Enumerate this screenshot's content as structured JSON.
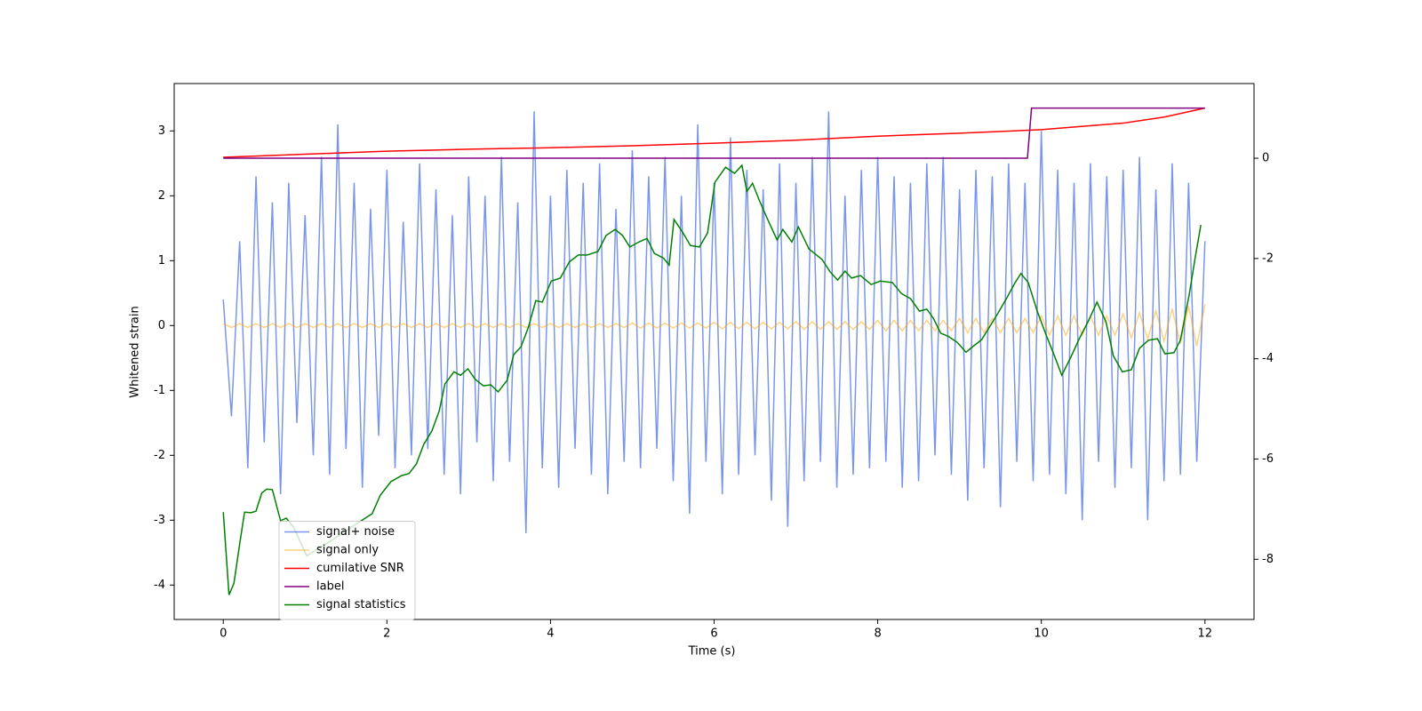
{
  "chart_data": {
    "type": "line",
    "xlabel": "Time (s)",
    "ylabel": "Whitened strain",
    "xlim": [
      -0.6,
      12.6
    ],
    "xticks": [
      0,
      2,
      4,
      6,
      8,
      10,
      12
    ],
    "ylim": [
      -4.53,
      3.73
    ],
    "yticks": [
      -4,
      -3,
      -2,
      -1,
      0,
      1,
      2,
      3
    ],
    "y2lim": [
      -9.2,
      1.49
    ],
    "y2ticks": [
      -8,
      -6,
      -4,
      -2,
      0
    ],
    "legend": "lower left",
    "x": [
      0,
      0.1,
      0.2,
      0.3,
      0.4,
      0.5,
      0.6,
      0.7,
      0.8,
      0.9,
      1,
      1.1,
      1.2,
      1.3,
      1.4,
      1.5,
      1.6,
      1.7,
      1.8,
      1.9,
      2,
      2.1,
      2.2,
      2.3,
      2.4,
      2.5,
      2.6,
      2.7,
      2.8,
      2.9,
      3,
      3.1,
      3.2,
      3.3,
      3.4,
      3.5,
      3.6,
      3.7,
      3.8,
      3.9,
      4,
      4.1,
      4.2,
      4.3,
      4.4,
      4.5,
      4.6,
      4.7,
      4.8,
      4.9,
      5,
      5.1,
      5.2,
      5.3,
      5.4,
      5.5,
      5.6,
      5.7,
      5.8,
      5.9,
      6,
      6.1,
      6.2,
      6.3,
      6.4,
      6.5,
      6.6,
      6.7,
      6.8,
      6.9,
      7,
      7.1,
      7.2,
      7.3,
      7.4,
      7.5,
      7.6,
      7.7,
      7.8,
      7.9,
      8,
      8.1,
      8.2,
      8.3,
      8.4,
      8.5,
      8.6,
      8.7,
      8.8,
      8.9,
      9,
      9.1,
      9.2,
      9.3,
      9.4,
      9.5,
      9.6,
      9.7,
      9.8,
      9.9,
      10,
      10.1,
      10.2,
      10.3,
      10.4,
      10.5,
      10.6,
      10.7,
      10.8,
      10.9,
      11,
      11.1,
      11.2,
      11.3,
      11.4,
      11.5,
      11.6,
      11.7,
      11.8,
      11.9,
      12
    ],
    "series": [
      {
        "name": "signal+ noise",
        "color": "#4169e1",
        "values": [
          0.4,
          -1.4,
          1.3,
          -2.2,
          2.3,
          -1.8,
          1.9,
          -2.6,
          2.2,
          -1.5,
          1.7,
          -2.0,
          2.6,
          -2.3,
          3.1,
          -1.9,
          2.2,
          -2.5,
          1.8,
          -1.7,
          2.4,
          -2.2,
          1.6,
          -2.0,
          2.5,
          -1.9,
          2.1,
          -2.3,
          1.7,
          -2.6,
          2.3,
          -1.8,
          2.0,
          -2.4,
          2.6,
          -2.1,
          1.9,
          -3.2,
          3.3,
          -2.2,
          2.0,
          -2.5,
          2.4,
          -1.9,
          2.2,
          -2.3,
          2.5,
          -2.6,
          1.8,
          -2.1,
          2.7,
          -2.2,
          2.3,
          -1.9,
          2.6,
          -2.4,
          2.0,
          -2.9,
          3.1,
          -2.1,
          2.2,
          -2.6,
          2.9,
          -2.3,
          2.4,
          -2.0,
          2.1,
          -2.7,
          2.5,
          -3.1,
          2.2,
          -2.4,
          2.6,
          -2.1,
          3.3,
          -2.5,
          2.0,
          -2.3,
          2.4,
          -2.2,
          2.6,
          -2.1,
          2.3,
          -2.5,
          2.2,
          -2.4,
          2.5,
          -2.0,
          2.6,
          -2.3,
          2.1,
          -2.7,
          2.4,
          -2.2,
          2.3,
          -2.8,
          2.5,
          -2.1,
          2.2,
          -2.4,
          3.0,
          -2.3,
          2.4,
          -2.6,
          2.2,
          -3.0,
          2.5,
          -2.1,
          2.3,
          -2.5,
          2.4,
          -2.2,
          2.6,
          -3.0,
          2.1,
          -2.4,
          2.5,
          -2.3,
          2.2,
          -2.1,
          1.3
        ]
      },
      {
        "name": "signal only",
        "color": "#ffa500",
        "values": [
          0.03,
          -0.03,
          0.03,
          -0.03,
          0.03,
          -0.03,
          0.03,
          -0.03,
          0.03,
          -0.03,
          0.03,
          -0.03,
          0.03,
          -0.03,
          0.03,
          -0.03,
          0.03,
          -0.03,
          0.03,
          -0.03,
          0.03,
          -0.03,
          0.03,
          -0.03,
          0.03,
          -0.03,
          0.03,
          -0.03,
          0.03,
          -0.03,
          0.03,
          -0.03,
          0.03,
          -0.03,
          0.03,
          -0.03,
          0.03,
          -0.03,
          0.03,
          -0.03,
          0.03,
          -0.03,
          0.03,
          -0.03,
          0.03,
          -0.03,
          0.03,
          -0.03,
          0.03,
          -0.03,
          0.04,
          -0.04,
          0.04,
          -0.04,
          0.04,
          -0.04,
          0.04,
          -0.04,
          0.04,
          -0.04,
          0.05,
          -0.05,
          0.05,
          -0.05,
          0.05,
          -0.05,
          0.05,
          -0.05,
          0.05,
          -0.05,
          0.06,
          -0.06,
          0.06,
          -0.06,
          0.06,
          -0.06,
          0.06,
          -0.06,
          0.06,
          -0.06,
          0.08,
          -0.08,
          0.08,
          -0.08,
          0.08,
          -0.08,
          0.08,
          -0.08,
          0.08,
          -0.08,
          0.11,
          -0.11,
          0.11,
          -0.11,
          0.11,
          -0.11,
          0.11,
          -0.11,
          0.11,
          -0.11,
          0.15,
          -0.15,
          0.15,
          -0.15,
          0.15,
          -0.15,
          0.15,
          -0.15,
          0.15,
          -0.15,
          0.18,
          -0.19,
          0.2,
          -0.21,
          0.23,
          -0.24,
          0.26,
          -0.28,
          0.3,
          -0.32,
          0.33
        ]
      },
      {
        "name": "cumilative SNR",
        "color": "#ff0000",
        "axis": "y2",
        "x": [
          0,
          1,
          2,
          3,
          4,
          5,
          6,
          7,
          8,
          9,
          10,
          11,
          11.5,
          12
        ],
        "values": [
          0.02,
          0.08,
          0.14,
          0.18,
          0.21,
          0.25,
          0.3,
          0.36,
          0.44,
          0.5,
          0.57,
          0.7,
          0.82,
          1.0
        ]
      },
      {
        "name": "label",
        "color": "#800080",
        "axis": "y2",
        "x": [
          0,
          9.83,
          9.88,
          12
        ],
        "values": [
          0,
          0,
          1,
          1
        ]
      },
      {
        "name": "signal statistics",
        "color": "#008000",
        "axis": "y2",
        "x": [
          0,
          0.07,
          0.13,
          0.2,
          0.26,
          0.34,
          0.4,
          0.47,
          0.53,
          0.6,
          0.7,
          0.77,
          0.86,
          1.02,
          1.29,
          1.62,
          1.82,
          1.92,
          2.05,
          2.18,
          2.27,
          2.36,
          2.45,
          2.55,
          2.64,
          2.71,
          2.82,
          2.9,
          2.99,
          3.08,
          3.18,
          3.27,
          3.36,
          3.47,
          3.55,
          3.64,
          3.73,
          3.82,
          3.9,
          4.01,
          4.12,
          4.23,
          4.34,
          4.45,
          4.58,
          4.68,
          4.79,
          4.88,
          4.97,
          5.08,
          5.18,
          5.27,
          5.38,
          5.45,
          5.51,
          5.62,
          5.71,
          5.82,
          5.92,
          6.01,
          6.14,
          6.25,
          6.34,
          6.4,
          6.47,
          6.55,
          6.66,
          6.77,
          6.84,
          6.95,
          7.03,
          7.16,
          7.32,
          7.42,
          7.51,
          7.6,
          7.68,
          7.79,
          7.92,
          8.03,
          8.18,
          8.29,
          8.4,
          8.51,
          8.6,
          8.68,
          8.77,
          8.86,
          8.97,
          9.08,
          9.16,
          9.27,
          9.38,
          9.47,
          9.58,
          9.68,
          9.75,
          9.84,
          9.95,
          10.05,
          10.16,
          10.25,
          10.36,
          10.47,
          10.58,
          10.68,
          10.79,
          10.88,
          10.99,
          11.1,
          11.2,
          11.31,
          11.42,
          11.51,
          11.62,
          11.7,
          11.81,
          11.88,
          11.95
        ],
        "values": [
          -7.06,
          -8.71,
          -8.48,
          -7.7,
          -7.06,
          -7.07,
          -7.04,
          -6.68,
          -6.6,
          -6.61,
          -7.23,
          -7.18,
          -7.36,
          -7.93,
          -7.66,
          -7.3,
          -7.09,
          -6.72,
          -6.45,
          -6.33,
          -6.29,
          -6.1,
          -5.71,
          -5.44,
          -5.04,
          -4.5,
          -4.26,
          -4.33,
          -4.2,
          -4.41,
          -4.54,
          -4.52,
          -4.66,
          -4.43,
          -3.92,
          -3.76,
          -3.37,
          -2.84,
          -2.87,
          -2.45,
          -2.39,
          -2.07,
          -1.93,
          -1.93,
          -1.86,
          -1.54,
          -1.42,
          -1.54,
          -1.77,
          -1.67,
          -1.6,
          -1.9,
          -1.99,
          -2.13,
          -1.22,
          -1.49,
          -1.74,
          -1.77,
          -1.49,
          -0.48,
          -0.18,
          -0.3,
          -0.14,
          -0.66,
          -0.5,
          -0.83,
          -1.24,
          -1.63,
          -1.42,
          -1.67,
          -1.37,
          -1.81,
          -2.02,
          -2.27,
          -2.43,
          -2.25,
          -2.39,
          -2.34,
          -2.52,
          -2.45,
          -2.48,
          -2.7,
          -2.8,
          -3.05,
          -3.01,
          -3.19,
          -3.49,
          -3.55,
          -3.67,
          -3.87,
          -3.76,
          -3.62,
          -3.33,
          -3.09,
          -2.78,
          -2.48,
          -2.3,
          -2.48,
          -3.05,
          -3.49,
          -3.94,
          -4.33,
          -3.97,
          -3.58,
          -3.23,
          -2.87,
          -3.26,
          -3.94,
          -4.26,
          -4.22,
          -3.79,
          -3.63,
          -3.6,
          -3.9,
          -3.88,
          -3.63,
          -2.7,
          -1.99,
          -1.33
        ]
      }
    ]
  }
}
